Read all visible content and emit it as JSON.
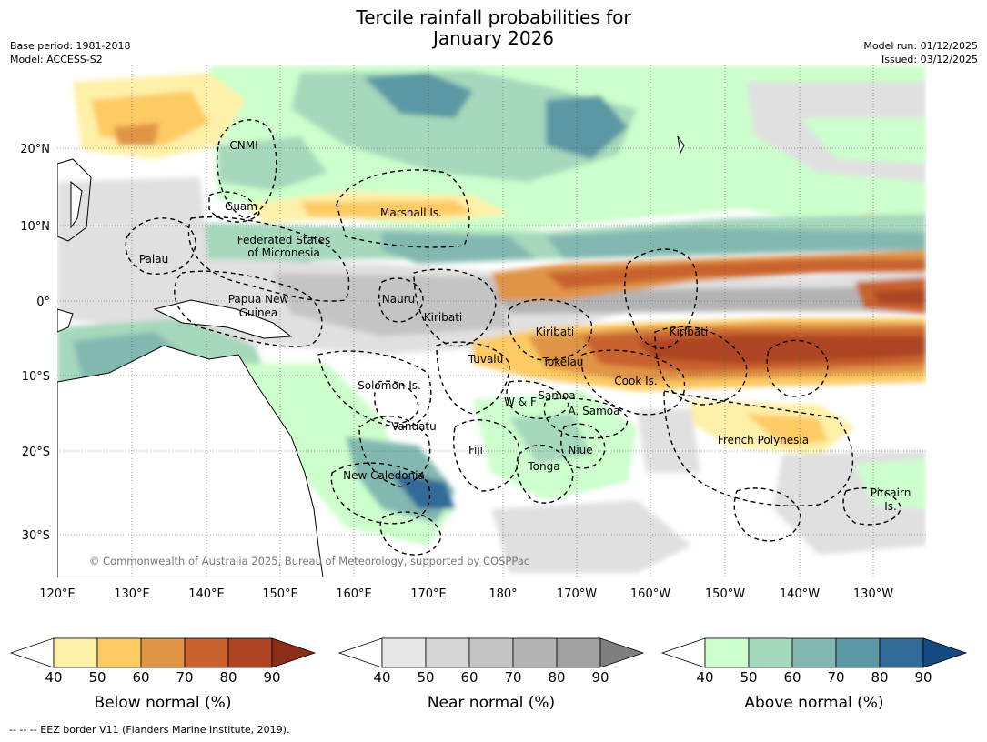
{
  "title_line1": "Tercile rainfall probabilities for",
  "title_line2": "January 2026",
  "meta": {
    "base_period": "Base period: 1981-2018",
    "model": "Model: ACCESS-S2",
    "model_run": "Model run: 01/12/2025",
    "issued": "Issued: 03/12/2025"
  },
  "axes": {
    "lat_labels": [
      "20°N",
      "10°N",
      "0°",
      "10°S",
      "20°S",
      "30°S"
    ],
    "lon_labels": [
      "120°E",
      "130°E",
      "140°E",
      "150°E",
      "160°E",
      "170°E",
      "180°",
      "170°W",
      "160°W",
      "150°W",
      "140°W",
      "130°W"
    ]
  },
  "regions": [
    {
      "name": "CNMI"
    },
    {
      "name": "Guam"
    },
    {
      "name": "Marshall Is."
    },
    {
      "name": "Federated States"
    },
    {
      "name": "of Micronesia"
    },
    {
      "name": "Palau"
    },
    {
      "name": "Papua New"
    },
    {
      "name": "Guinea"
    },
    {
      "name": "Nauru"
    },
    {
      "name": "Kiribati"
    },
    {
      "name": "Kiribati"
    },
    {
      "name": "Kiribati"
    },
    {
      "name": "Tuvalu"
    },
    {
      "name": "Tokelau"
    },
    {
      "name": "Solomon Is."
    },
    {
      "name": "W & F"
    },
    {
      "name": "Samoa"
    },
    {
      "name": "A. Samoa"
    },
    {
      "name": "Cook Is."
    },
    {
      "name": "Vanuatu"
    },
    {
      "name": "Fiji"
    },
    {
      "name": "Niue"
    },
    {
      "name": "French Polynesia"
    },
    {
      "name": "Tonga"
    },
    {
      "name": "New Caledonia"
    },
    {
      "name": "Pitcairn"
    },
    {
      "name": "Is."
    }
  ],
  "copyright": "© Commonwealth of Australia 2025, Bureau of Meteorology, supported by COSPPac",
  "colorbars": [
    {
      "label": "Below normal (%)",
      "ticks": [
        "40",
        "50",
        "60",
        "70",
        "80",
        "90"
      ],
      "colors": [
        "#fef0a8",
        "#fdca63",
        "#e09446",
        "#c9622e",
        "#ad4422",
        "#8c2d17"
      ]
    },
    {
      "label": "Near normal (%)",
      "ticks": [
        "40",
        "50",
        "60",
        "70",
        "80",
        "90"
      ],
      "colors": [
        "#e8e8e8",
        "#d6d6d6",
        "#c4c4c4",
        "#b3b3b3",
        "#a1a1a1",
        "#7f7f7f"
      ]
    },
    {
      "label": "Above normal (%)",
      "ticks": [
        "40",
        "50",
        "60",
        "70",
        "80",
        "90"
      ],
      "colors": [
        "#ccffcc",
        "#a6d8bc",
        "#82b8b0",
        "#5b98a4",
        "#336b98",
        "#134a80"
      ]
    }
  ],
  "footer": "--  --  -- EEZ border V11 (Flanders Marine Institute, 2019)."
}
